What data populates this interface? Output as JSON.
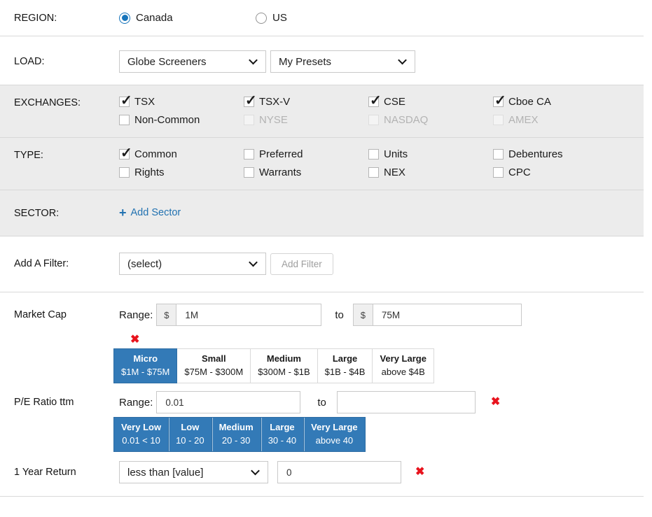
{
  "region": {
    "label": "REGION:",
    "options": [
      {
        "label": "Canada",
        "selected": true
      },
      {
        "label": "US",
        "selected": false
      }
    ]
  },
  "load": {
    "label": "LOAD:",
    "dropdowns": [
      {
        "value": "Globe Screeners"
      },
      {
        "value": "My Presets"
      }
    ]
  },
  "exchanges": {
    "label": "EXCHANGES:",
    "items": [
      {
        "label": "TSX",
        "checked": true,
        "disabled": false
      },
      {
        "label": "TSX-V",
        "checked": true,
        "disabled": false
      },
      {
        "label": "CSE",
        "checked": true,
        "disabled": false
      },
      {
        "label": "Cboe CA",
        "checked": true,
        "disabled": false
      },
      {
        "label": "Non-Common",
        "checked": false,
        "disabled": false
      },
      {
        "label": "NYSE",
        "checked": false,
        "disabled": true
      },
      {
        "label": "NASDAQ",
        "checked": false,
        "disabled": true
      },
      {
        "label": "AMEX",
        "checked": false,
        "disabled": true
      }
    ]
  },
  "type": {
    "label": "TYPE:",
    "items": [
      {
        "label": "Common",
        "checked": true,
        "disabled": false
      },
      {
        "label": "Preferred",
        "checked": false,
        "disabled": false
      },
      {
        "label": "Units",
        "checked": false,
        "disabled": false
      },
      {
        "label": "Debentures",
        "checked": false,
        "disabled": false
      },
      {
        "label": "Rights",
        "checked": false,
        "disabled": false
      },
      {
        "label": "Warrants",
        "checked": false,
        "disabled": false
      },
      {
        "label": "NEX",
        "checked": false,
        "disabled": false
      },
      {
        "label": "CPC",
        "checked": false,
        "disabled": false
      }
    ]
  },
  "sector": {
    "label": "SECTOR:",
    "add_label": "Add Sector"
  },
  "add_filter": {
    "label": "Add A Filter:",
    "select_value": "(select)",
    "button_label": "Add Filter"
  },
  "filters": {
    "market_cap": {
      "label": "Market Cap",
      "range_label": "Range:",
      "currency": "$",
      "min": "1M",
      "to_label": "to",
      "max": "75M",
      "buckets": [
        {
          "title": "Micro",
          "range": "$1M - $75M",
          "selected": true
        },
        {
          "title": "Small",
          "range": "$75M - $300M",
          "selected": false
        },
        {
          "title": "Medium",
          "range": "$300M - $1B",
          "selected": false
        },
        {
          "title": "Large",
          "range": "$1B - $4B",
          "selected": false
        },
        {
          "title": "Very Large",
          "range": "above $4B",
          "selected": false
        }
      ]
    },
    "pe_ratio": {
      "label": "P/E Ratio ttm",
      "range_label": "Range:",
      "min": "0.01",
      "to_label": "to",
      "max": "",
      "buckets": [
        {
          "title": "Very Low",
          "range": "0.01 < 10",
          "selected": true
        },
        {
          "title": "Low",
          "range": "10 - 20",
          "selected": true
        },
        {
          "title": "Medium",
          "range": "20 - 30",
          "selected": true
        },
        {
          "title": "Large",
          "range": "30 - 40",
          "selected": true
        },
        {
          "title": "Very Large",
          "range": "above 40",
          "selected": true
        }
      ]
    },
    "one_year_return": {
      "label": "1 Year Return",
      "operator": "less than [value]",
      "value": "0"
    }
  },
  "icons": {
    "remove": "✖",
    "add_sector": "+",
    "checkmark": "✓"
  },
  "colors": {
    "accent_blue": "#337ab7",
    "radio_blue": "#1674bb",
    "link_blue": "#2272b1",
    "remove_red": "#e8131d",
    "section_bg": "#ececec"
  }
}
